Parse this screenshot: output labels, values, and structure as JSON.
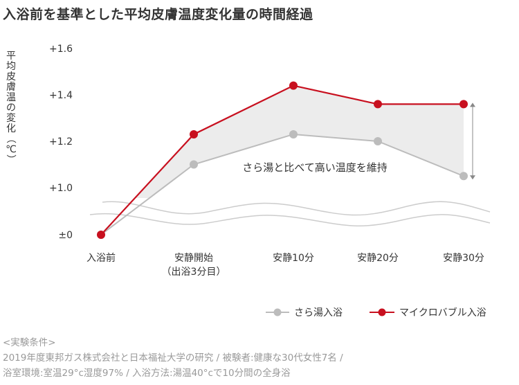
{
  "title": "入浴前を基準とした平均皮膚温度変化量の時間経過",
  "colors": {
    "maicro": "#c8101f",
    "sarayu": "#bcbcbc",
    "band": "#ececec",
    "text": "#333333",
    "footnote": "#999999"
  },
  "chart_data": {
    "type": "line",
    "title": "入浴前を基準とした平均皮膚温度変化量の時間経過",
    "ylabel": "平均皮膚温の変化（℃）",
    "xlabel": "",
    "categories": [
      "入浴前",
      "安静開始\n（出浴3分目）",
      "安静10分",
      "安静20分",
      "安静30分"
    ],
    "category_lines": [
      [
        "入浴前"
      ],
      [
        "安静開始",
        "（出浴3分目）"
      ],
      [
        "安静10分"
      ],
      [
        "安静20分"
      ],
      [
        "安静30分"
      ]
    ],
    "y_ticks": [
      "+1.6",
      "+1.4",
      "+1.2",
      "+1.0",
      "±0"
    ],
    "y_tick_values": [
      1.6,
      1.4,
      1.2,
      1.0,
      0
    ],
    "axis_break": "between ±0 and +1.0 (wavy break lines)",
    "grid": false,
    "legend_position": "bottom-right",
    "series": [
      {
        "name": "さら湯入浴",
        "color": "#bcbcbc",
        "values": [
          0,
          1.1,
          1.23,
          1.2,
          1.05
        ]
      },
      {
        "name": "マイクロバブル入浴",
        "color": "#c8101f",
        "values": [
          0,
          1.23,
          1.44,
          1.36,
          1.36
        ]
      }
    ],
    "annotation": "さら湯と比べて高い温度を維持"
  },
  "footnotes": [
    "<実験条件>",
    "2019年度東邦ガス株式会社と日本福祉大学の研究 / 被験者:健康な30代女性7名 /",
    "浴室環境:室温29°c湿度97% / 入浴方法:湯温40°cで10分間の全身浴"
  ]
}
